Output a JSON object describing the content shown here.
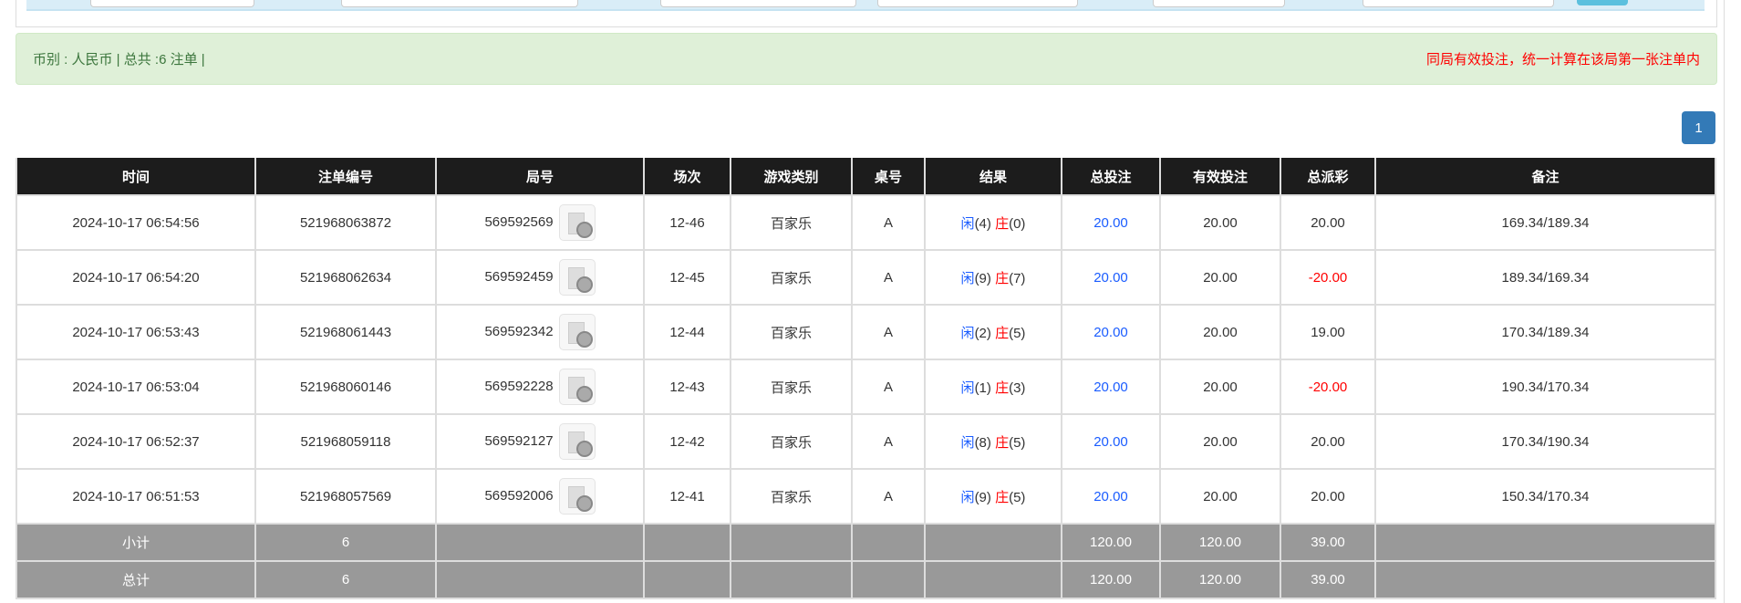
{
  "alert": {
    "summary": "币别 : 人民币 | 总共 :6 注单 |",
    "notice": "同局有效投注，统一计算在该局第一张注单内"
  },
  "pagination": {
    "current": "1"
  },
  "colors": {
    "header_bg": "#1c1c1c",
    "alert_bg": "#dff0d8",
    "page_btn": "#337ab7",
    "blue": "#1a5cff",
    "red": "#ff0000",
    "summary_bg": "#999999"
  },
  "table": {
    "headers": [
      "时间",
      "注单编号",
      "局号",
      "场次",
      "游戏类别",
      "桌号",
      "结果",
      "总投注",
      "有效投注",
      "总派彩",
      "备注"
    ],
    "rows": [
      {
        "time": "2024-10-17 06:54:56",
        "bet_id": "521968063872",
        "round": "569592569",
        "session": "12-46",
        "game": "百家乐",
        "table": "A",
        "player": "闲",
        "player_pts": "(4)",
        "banker": "庄",
        "banker_pts": "(0)",
        "total_bet": "20.00",
        "valid_bet": "20.00",
        "payout": "20.00",
        "payout_negative": false,
        "remark": "169.34/189.34"
      },
      {
        "time": "2024-10-17 06:54:20",
        "bet_id": "521968062634",
        "round": "569592459",
        "session": "12-45",
        "game": "百家乐",
        "table": "A",
        "player": "闲",
        "player_pts": "(9)",
        "banker": "庄",
        "banker_pts": "(7)",
        "total_bet": "20.00",
        "valid_bet": "20.00",
        "payout": "-20.00",
        "payout_negative": true,
        "remark": "189.34/169.34"
      },
      {
        "time": "2024-10-17 06:53:43",
        "bet_id": "521968061443",
        "round": "569592342",
        "session": "12-44",
        "game": "百家乐",
        "table": "A",
        "player": "闲",
        "player_pts": "(2)",
        "banker": "庄",
        "banker_pts": "(5)",
        "total_bet": "20.00",
        "valid_bet": "20.00",
        "payout": "19.00",
        "payout_negative": false,
        "remark": "170.34/189.34"
      },
      {
        "time": "2024-10-17 06:53:04",
        "bet_id": "521968060146",
        "round": "569592228",
        "session": "12-43",
        "game": "百家乐",
        "table": "A",
        "player": "闲",
        "player_pts": "(1)",
        "banker": "庄",
        "banker_pts": "(3)",
        "total_bet": "20.00",
        "valid_bet": "20.00",
        "payout": "-20.00",
        "payout_negative": true,
        "remark": "190.34/170.34"
      },
      {
        "time": "2024-10-17 06:52:37",
        "bet_id": "521968059118",
        "round": "569592127",
        "session": "12-42",
        "game": "百家乐",
        "table": "A",
        "player": "闲",
        "player_pts": "(8)",
        "banker": "庄",
        "banker_pts": "(5)",
        "total_bet": "20.00",
        "valid_bet": "20.00",
        "payout": "20.00",
        "payout_negative": false,
        "remark": "170.34/190.34"
      },
      {
        "time": "2024-10-17 06:51:53",
        "bet_id": "521968057569",
        "round": "569592006",
        "session": "12-41",
        "game": "百家乐",
        "table": "A",
        "player": "闲",
        "player_pts": "(9)",
        "banker": "庄",
        "banker_pts": "(5)",
        "total_bet": "20.00",
        "valid_bet": "20.00",
        "payout": "20.00",
        "payout_negative": false,
        "remark": "150.34/170.34"
      }
    ],
    "summary": [
      {
        "label": "小计",
        "count": "6",
        "total_bet": "120.00",
        "valid_bet": "120.00",
        "payout": "39.00"
      },
      {
        "label": "总计",
        "count": "6",
        "total_bet": "120.00",
        "valid_bet": "120.00",
        "payout": "39.00"
      }
    ]
  }
}
